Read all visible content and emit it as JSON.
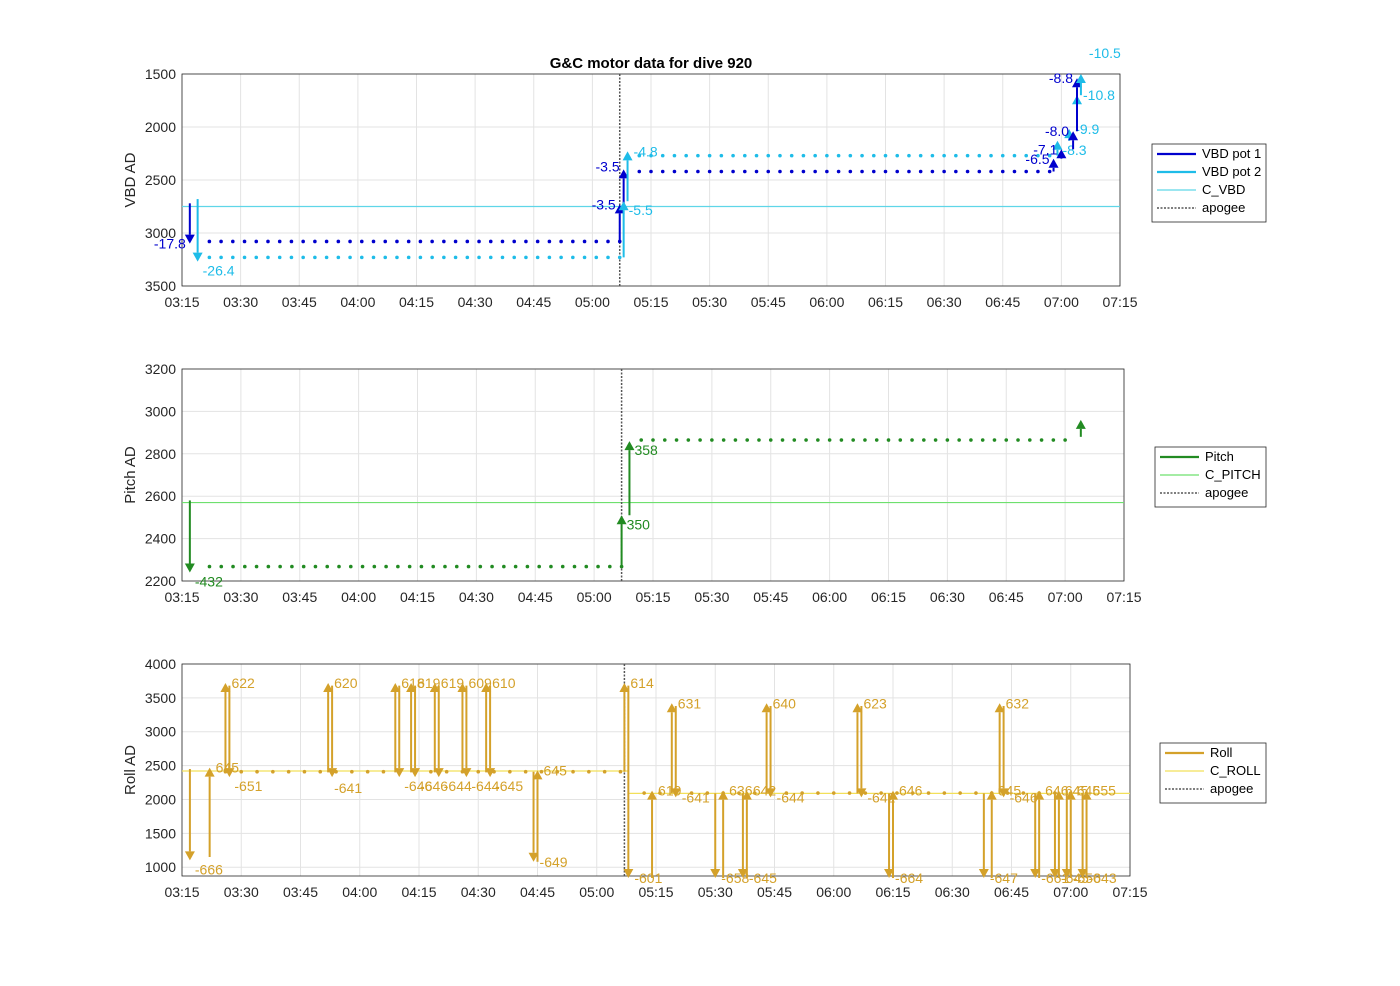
{
  "title": "G&C motor data for dive 920",
  "colors": {
    "vbd1": "#0000cd",
    "vbd2": "#1ebce8",
    "c_vbd": "#5fd6e8",
    "pitch": "#228b22",
    "c_pitch": "#6ee06e",
    "roll": "#d4a12a",
    "c_roll": "#f2e05a",
    "apogee": "#555555"
  },
  "chart_data": [
    {
      "type": "scatter",
      "ylabel": "VBD AD",
      "xlim": [
        "03:15",
        "07:15"
      ],
      "ylim": [
        1500,
        3500
      ],
      "y_reversed": true,
      "xticks": [
        "03:15",
        "03:30",
        "03:45",
        "04:00",
        "04:15",
        "04:30",
        "04:45",
        "05:00",
        "05:15",
        "05:30",
        "05:45",
        "06:00",
        "06:15",
        "06:30",
        "06:45",
        "07:00",
        "07:15"
      ],
      "yticks": [
        1500,
        2000,
        2500,
        3000,
        3500
      ],
      "grid": true,
      "legend_position": "right",
      "legend": [
        "VBD pot 1",
        "VBD pot 2",
        "C_VBD",
        "apogee"
      ],
      "c_value": 2750,
      "apogee_time": "05:07",
      "series": [
        {
          "name": "VBD pot 1",
          "color_key": "vbd1",
          "points": {
            "start": "03:22",
            "end": "05:07",
            "step_min": 3,
            "value": 3080
          },
          "points2": {
            "start": "05:12",
            "end": "06:57",
            "step_min": 3,
            "value": 2420
          }
        },
        {
          "name": "VBD pot 2",
          "color_key": "vbd2",
          "points": {
            "start": "03:22",
            "end": "05:07",
            "step_min": 3,
            "value": 3230
          },
          "points2": {
            "start": "05:12",
            "end": "06:57",
            "step_min": 3,
            "value": 2270
          }
        }
      ],
      "arrows": [
        {
          "series": "VBD pot 1",
          "t": "03:17",
          "y0": 2720,
          "y1": 3100,
          "label": "-17.8",
          "label_pos": "left"
        },
        {
          "series": "VBD pot 2",
          "t": "03:19",
          "y0": 2680,
          "y1": 3270,
          "label": "-26.4",
          "label_pos": "below-right"
        },
        {
          "series": "VBD pot 1",
          "t": "05:07",
          "y0": 3080,
          "y1": 2730,
          "label": "-3.5",
          "label_pos": "left"
        },
        {
          "series": "VBD pot 1",
          "t": "05:08",
          "y0": 2730,
          "y1": 2400,
          "label": "-3.5",
          "label_pos": "left-top"
        },
        {
          "series": "VBD pot 2",
          "t": "05:08",
          "y0": 3230,
          "y1": 2700,
          "label": "-5.5",
          "label_pos": "below-right"
        },
        {
          "series": "VBD pot 2",
          "t": "05:09",
          "y0": 2700,
          "y1": 2230,
          "label": "-4.8",
          "label_pos": "right"
        },
        {
          "series": "VBD pot 1",
          "t": "06:58",
          "y0": 2420,
          "y1": 2300,
          "label": "-6.5",
          "label_pos": "left"
        },
        {
          "series": "VBD pot 2",
          "t": "06:59",
          "y0": 2270,
          "y1": 2130,
          "label": "-8.3",
          "label_pos": "below-right"
        },
        {
          "series": "VBD pot 1",
          "t": "07:00",
          "y0": 2300,
          "y1": 2210,
          "label": "-7.1",
          "label_pos": "left"
        },
        {
          "series": "VBD pot 2",
          "t": "07:02",
          "y0": 2130,
          "y1": 2020,
          "label": "-9.9",
          "label_pos": "right"
        },
        {
          "series": "VBD pot 1",
          "t": "07:03",
          "y0": 2210,
          "y1": 2040,
          "label": "-8.0",
          "label_pos": "left"
        },
        {
          "series": "VBD pot 2",
          "t": "07:04",
          "y0": 2020,
          "y1": 1700,
          "label": "-10.8",
          "label_pos": "right"
        },
        {
          "series": "VBD pot 1",
          "t": "07:04",
          "y0": 2040,
          "y1": 1540,
          "label": "-8.8",
          "label_pos": "left"
        },
        {
          "series": "VBD pot 2",
          "t": "07:05",
          "y0": 1700,
          "y1": 1500,
          "label": "-10.5",
          "label_pos": "above-right"
        }
      ]
    },
    {
      "type": "scatter",
      "ylabel": "Pitch AD",
      "xlim": [
        "03:15",
        "07:15"
      ],
      "ylim": [
        2200,
        3200
      ],
      "xticks": [
        "03:15",
        "03:30",
        "03:45",
        "04:00",
        "04:15",
        "04:30",
        "04:45",
        "05:00",
        "05:15",
        "05:30",
        "05:45",
        "06:00",
        "06:15",
        "06:30",
        "06:45",
        "07:00",
        "07:15"
      ],
      "yticks": [
        2200,
        2400,
        2600,
        2800,
        3000,
        3200
      ],
      "grid": true,
      "legend_position": "right",
      "legend": [
        "Pitch",
        "C_PITCH",
        "apogee"
      ],
      "c_value": 2570,
      "apogee_time": "05:07",
      "series": [
        {
          "name": "Pitch",
          "color_key": "pitch",
          "points": {
            "start": "03:22",
            "end": "05:07",
            "step_min": 3,
            "value": 2268
          },
          "points2": {
            "start": "05:12",
            "end": "07:02",
            "step_min": 3,
            "value": 2865
          }
        }
      ],
      "arrows": [
        {
          "series": "Pitch",
          "t": "03:17",
          "y0": 2580,
          "y1": 2240,
          "label": "-432",
          "label_pos": "below-right"
        },
        {
          "series": "Pitch",
          "t": "05:07",
          "y0": 2265,
          "y1": 2510,
          "label": "350",
          "label_pos": "below-right"
        },
        {
          "series": "Pitch",
          "t": "05:09",
          "y0": 2510,
          "y1": 2860,
          "label": "358",
          "label_pos": "below-right"
        },
        {
          "series": "Pitch",
          "t": "07:04",
          "y0": 2880,
          "y1": 2960,
          "label": "",
          "label_pos": "none"
        }
      ]
    },
    {
      "type": "scatter",
      "ylabel": "Roll AD",
      "xlim": [
        "03:15",
        "07:15"
      ],
      "ylim": [
        870,
        4000
      ],
      "xticks": [
        "03:15",
        "03:30",
        "03:45",
        "04:00",
        "04:15",
        "04:30",
        "04:45",
        "05:00",
        "05:15",
        "05:30",
        "05:45",
        "06:00",
        "06:15",
        "06:30",
        "06:45",
        "07:00",
        "07:15"
      ],
      "yticks": [
        1000,
        1500,
        2000,
        2500,
        3000,
        3500,
        4000
      ],
      "grid": true,
      "legend_position": "right",
      "legend": [
        "Roll",
        "C_ROLL",
        "apogee"
      ],
      "c_value_segments": [
        {
          "start": "03:15",
          "end": "05:08",
          "value": 2420
        },
        {
          "start": "05:08",
          "end": "07:15",
          "value": 2090
        }
      ],
      "apogee_time": "05:07",
      "series": [
        {
          "name": "Roll",
          "color_key": "roll",
          "points": {
            "start": "03:22",
            "end": "05:07",
            "step_min": 4,
            "value": 2410
          },
          "points2": {
            "start": "05:12",
            "end": "07:02",
            "step_min": 4,
            "value": 2095
          }
        }
      ],
      "arrows": [
        {
          "t": "03:17",
          "y0": 2450,
          "y1": 1100,
          "label": "-666",
          "label_pos": "below-right"
        },
        {
          "t": "03:22",
          "y0": 1150,
          "y1": 2470,
          "label": "645",
          "label_pos": "right"
        },
        {
          "t": "03:26",
          "y0": 2400,
          "y1": 3720,
          "label": "622",
          "label_pos": "right"
        },
        {
          "t": "03:27",
          "y0": 3680,
          "y1": 2330,
          "label": "-651",
          "label_pos": "below-right"
        },
        {
          "t": "03:52",
          "y0": 2400,
          "y1": 3720,
          "label": "620",
          "label_pos": "right"
        },
        {
          "t": "03:53",
          "y0": 3680,
          "y1": 2330,
          "label": "-641",
          "label_pos": "below"
        },
        {
          "t": "04:09",
          "y0": 2400,
          "y1": 3720,
          "label": "618",
          "label_pos": "right"
        },
        {
          "t": "04:10",
          "y0": 3680,
          "y1": 2330,
          "label": "-646",
          "label_pos": "below-right"
        },
        {
          "t": "04:13",
          "y0": 2400,
          "y1": 3720,
          "label": "619",
          "label_pos": "right"
        },
        {
          "t": "04:14",
          "y0": 3680,
          "y1": 2330,
          "label": "-646",
          "label_pos": "below-right"
        },
        {
          "t": "04:19",
          "y0": 2400,
          "y1": 3720,
          "label": "619",
          "label_pos": "right"
        },
        {
          "t": "04:20",
          "y0": 3680,
          "y1": 2330,
          "label": "-644",
          "label_pos": "below-right"
        },
        {
          "t": "04:26",
          "y0": 2400,
          "y1": 3720,
          "label": "609",
          "label_pos": "right"
        },
        {
          "t": "04:27",
          "y0": 3680,
          "y1": 2330,
          "label": "-644",
          "label_pos": "below-right"
        },
        {
          "t": "04:32",
          "y0": 2400,
          "y1": 3720,
          "label": "610",
          "label_pos": "right"
        },
        {
          "t": "04:33",
          "y0": 3680,
          "y1": 2330,
          "label": "-645",
          "label_pos": "below-right"
        },
        {
          "t": "04:44",
          "y0": 2410,
          "y1": 1080,
          "label": "-649",
          "label_pos": "right"
        },
        {
          "t": "04:45",
          "y0": 1080,
          "y1": 2430,
          "label": "645",
          "label_pos": "right"
        },
        {
          "t": "05:07",
          "y0": 2410,
          "y1": 3720,
          "label": "614",
          "label_pos": "right"
        },
        {
          "t": "05:08",
          "y0": 3680,
          "y1": 840,
          "label": "-601",
          "label_pos": "right"
        },
        {
          "t": "05:14",
          "y0": 840,
          "y1": 2130,
          "label": "619",
          "label_pos": "right"
        },
        {
          "t": "05:19",
          "y0": 2090,
          "y1": 3420,
          "label": "631",
          "label_pos": "right"
        },
        {
          "t": "05:20",
          "y0": 3380,
          "y1": 2030,
          "label": "-641",
          "label_pos": "right"
        },
        {
          "t": "05:30",
          "y0": 2090,
          "y1": 840,
          "label": "-658",
          "label_pos": "right"
        },
        {
          "t": "05:32",
          "y0": 840,
          "y1": 2130,
          "label": "636",
          "label_pos": "right"
        },
        {
          "t": "05:37",
          "y0": 2090,
          "y1": 840,
          "label": "-645",
          "label_pos": "right"
        },
        {
          "t": "05:38",
          "y0": 840,
          "y1": 2130,
          "label": "642",
          "label_pos": "right"
        },
        {
          "t": "05:43",
          "y0": 2090,
          "y1": 3420,
          "label": "640",
          "label_pos": "right"
        },
        {
          "t": "05:44",
          "y0": 3380,
          "y1": 2030,
          "label": "-644",
          "label_pos": "right"
        },
        {
          "t": "06:06",
          "y0": 2090,
          "y1": 3420,
          "label": "623",
          "label_pos": "right"
        },
        {
          "t": "06:07",
          "y0": 3380,
          "y1": 2030,
          "label": "-642",
          "label_pos": "right"
        },
        {
          "t": "06:14",
          "y0": 2090,
          "y1": 840,
          "label": "-664",
          "label_pos": "right"
        },
        {
          "t": "06:15",
          "y0": 840,
          "y1": 2130,
          "label": "646",
          "label_pos": "right"
        },
        {
          "t": "06:38",
          "y0": 2090,
          "y1": 840,
          "label": "-647",
          "label_pos": "right"
        },
        {
          "t": "06:40",
          "y0": 840,
          "y1": 2130,
          "label": "645",
          "label_pos": "right"
        },
        {
          "t": "06:42",
          "y0": 2090,
          "y1": 3420,
          "label": "632",
          "label_pos": "right"
        },
        {
          "t": "06:43",
          "y0": 3380,
          "y1": 2030,
          "label": "-646",
          "label_pos": "right"
        },
        {
          "t": "06:51",
          "y0": 2090,
          "y1": 840,
          "label": "-661",
          "label_pos": "right"
        },
        {
          "t": "06:52",
          "y0": 840,
          "y1": 2130,
          "label": "646",
          "label_pos": "right"
        },
        {
          "t": "06:56",
          "y0": 2090,
          "y1": 840,
          "label": "-645",
          "label_pos": "right"
        },
        {
          "t": "06:57",
          "y0": 840,
          "y1": 2130,
          "label": "645",
          "label_pos": "right"
        },
        {
          "t": "06:59",
          "y0": 2090,
          "y1": 840,
          "label": "-650",
          "label_pos": "right"
        },
        {
          "t": "07:00",
          "y0": 840,
          "y1": 2130,
          "label": "645",
          "label_pos": "right"
        },
        {
          "t": "07:03",
          "y0": 2090,
          "y1": 840,
          "label": "-643",
          "label_pos": "right"
        },
        {
          "t": "07:04",
          "y0": 840,
          "y1": 2130,
          "label": "655",
          "label_pos": "right"
        }
      ]
    }
  ]
}
